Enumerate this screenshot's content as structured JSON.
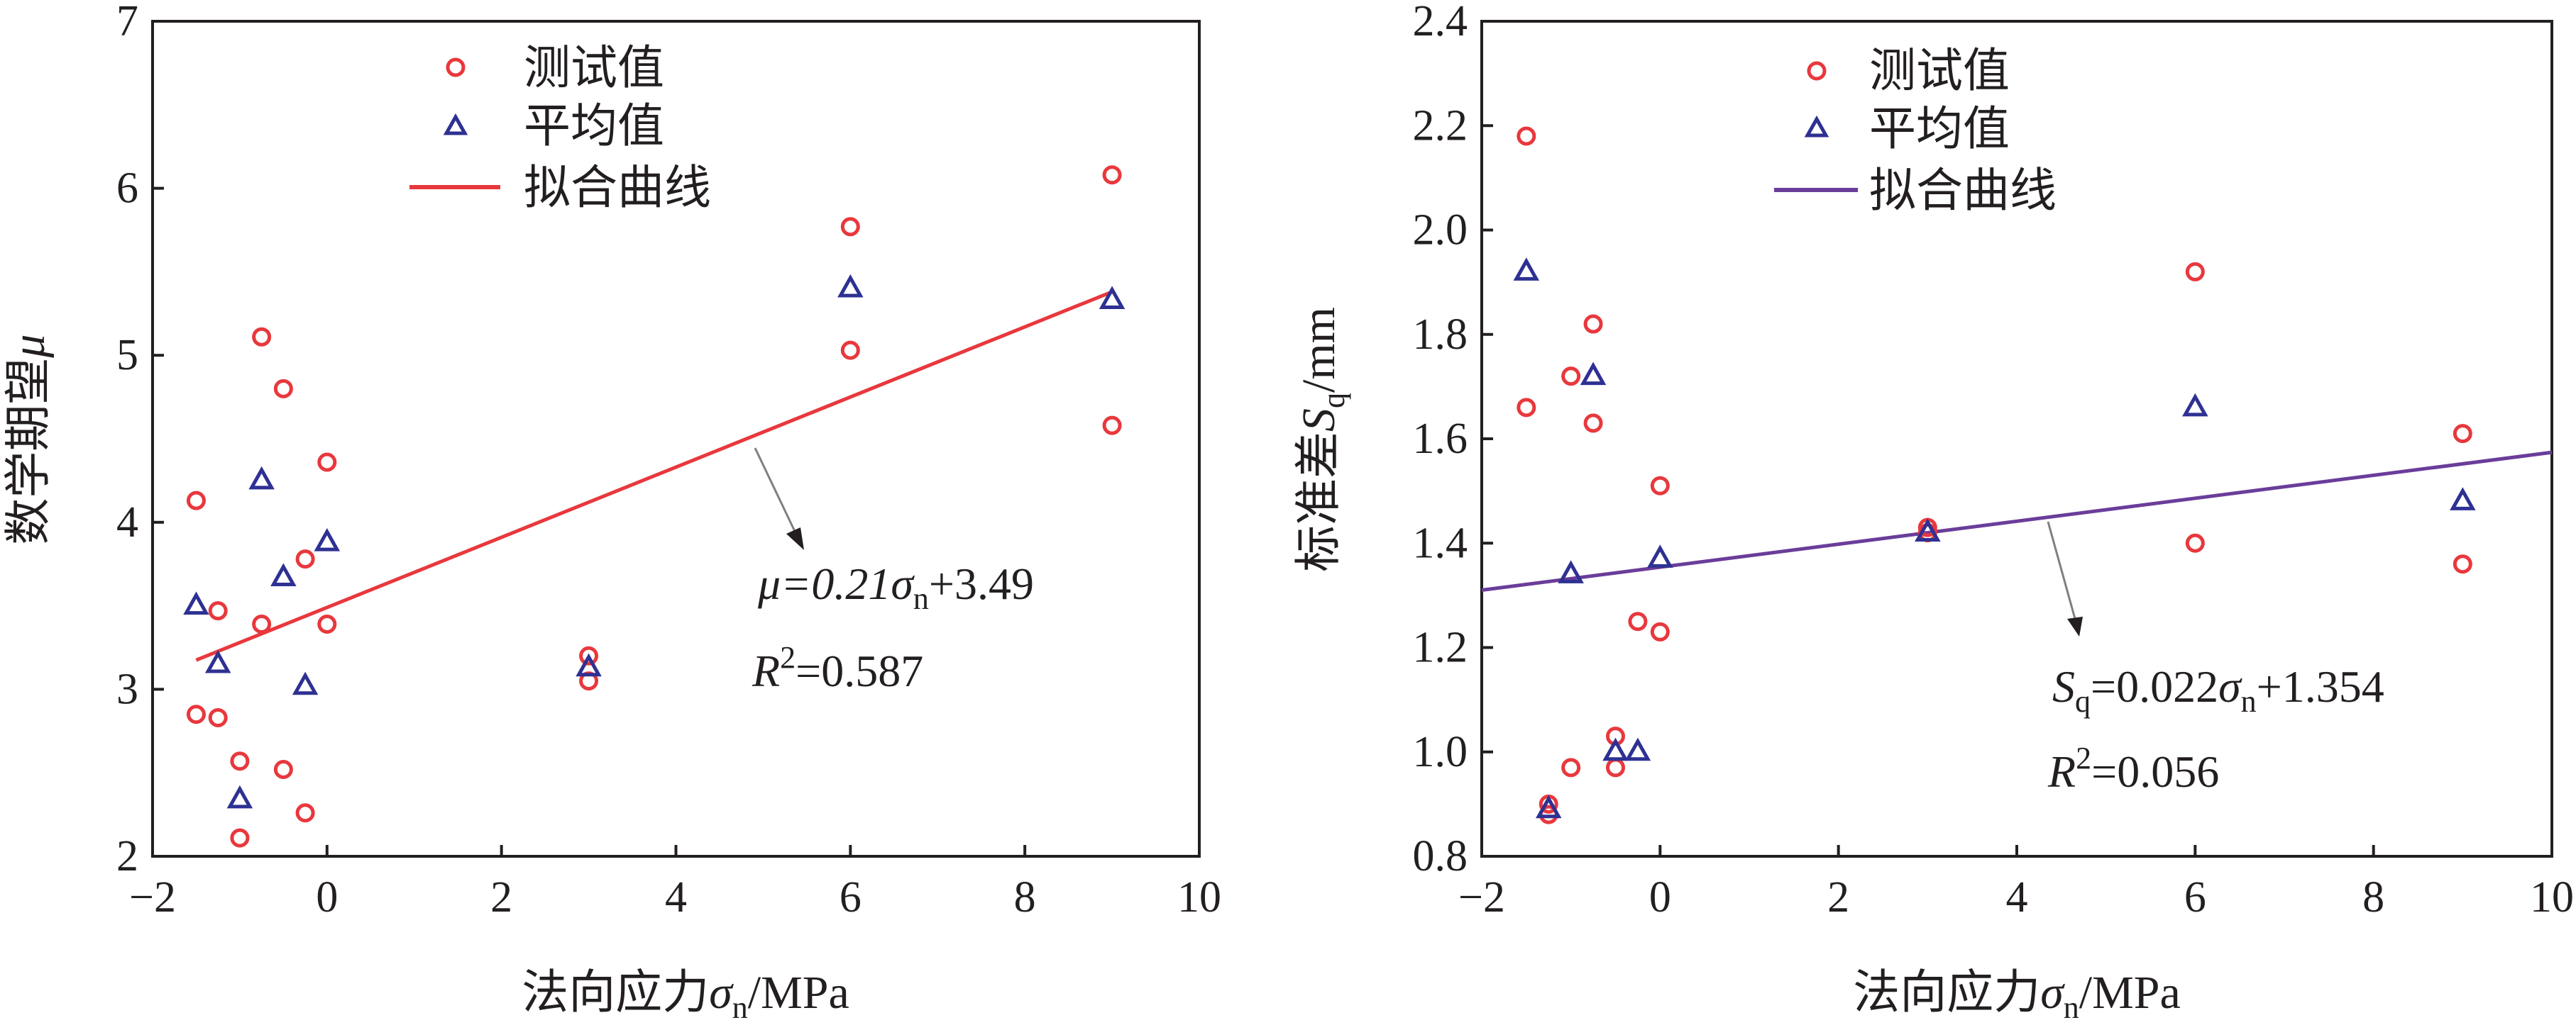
{
  "colors": {
    "test_marker": "#e8383d",
    "mean_marker": "#2e3192",
    "fit_left": "#e8383d",
    "fit_right": "#6a3d9a",
    "axis": "#231f20",
    "arrow": "#808080"
  },
  "chart_data": [
    {
      "type": "scatter",
      "xlabel": "法向应力σn/MPa",
      "ylabel": "数学期望μ",
      "xlim": [
        -2,
        10
      ],
      "ylim": [
        2,
        7
      ],
      "xticks": [
        -2,
        0,
        2,
        4,
        6,
        8,
        10
      ],
      "xtick_labels": [
        "−2",
        "0",
        "2",
        "4",
        "6",
        "8",
        "10"
      ],
      "yticks": [
        2,
        3,
        4,
        5,
        6,
        7
      ],
      "ytick_labels": [
        "2",
        "3",
        "4",
        "5",
        "6",
        "7"
      ],
      "legend_position": "top-left",
      "series": [
        {
          "name": "测试值",
          "marker": "circle",
          "points": [
            [
              -1.5,
              4.13
            ],
            [
              -1.5,
              2.85
            ],
            [
              -1.25,
              3.47
            ],
            [
              -1.25,
              2.83
            ],
            [
              -1.0,
              2.57
            ],
            [
              -1.0,
              2.11
            ],
            [
              -0.75,
              5.11
            ],
            [
              -0.75,
              3.39
            ],
            [
              -0.5,
              4.8
            ],
            [
              -0.5,
              2.52
            ],
            [
              -0.25,
              3.78
            ],
            [
              -0.25,
              2.26
            ],
            [
              0,
              4.36
            ],
            [
              0,
              3.39
            ],
            [
              3,
              3.2
            ],
            [
              3,
              3.05
            ],
            [
              6,
              5.77
            ],
            [
              6,
              5.03
            ],
            [
              9,
              6.08
            ],
            [
              9,
              4.58
            ]
          ]
        },
        {
          "name": "平均值",
          "marker": "triangle",
          "points": [
            [
              -1.5,
              3.5
            ],
            [
              -1.25,
              3.15
            ],
            [
              -1.0,
              2.34
            ],
            [
              -0.75,
              4.25
            ],
            [
              -0.5,
              3.67
            ],
            [
              -0.25,
              3.02
            ],
            [
              0,
              3.88
            ],
            [
              3,
              3.13
            ],
            [
              6,
              5.4
            ],
            [
              9,
              5.33
            ]
          ]
        },
        {
          "name": "拟合曲线",
          "marker": "line",
          "slope": 0.21,
          "intercept": 3.49,
          "x_range": [
            -1.5,
            9
          ]
        }
      ],
      "annotation": {
        "equation": {
          "pre": "μ=0.21",
          "sym": "σ",
          "sub": "n",
          "post": "+3.49"
        },
        "r2": {
          "pre": "R",
          "sup": "2",
          "post": "=0.587"
        }
      }
    },
    {
      "type": "scatter",
      "xlabel": "法向应力σn/MPa",
      "ylabel": "标准差Sq/mm",
      "xlim": [
        -2,
        10
      ],
      "ylim": [
        0.8,
        2.4
      ],
      "xticks": [
        -2,
        0,
        2,
        4,
        6,
        8,
        10
      ],
      "xtick_labels": [
        "−2",
        "0",
        "2",
        "4",
        "6",
        "8",
        "10"
      ],
      "yticks": [
        0.8,
        1.0,
        1.2,
        1.4,
        1.6,
        1.8,
        2.0,
        2.2,
        2.4
      ],
      "ytick_labels": [
        "0.8",
        "1.0",
        "1.2",
        "1.4",
        "1.6",
        "1.8",
        "2.0",
        "2.2",
        "2.4"
      ],
      "legend_position": "top-left",
      "series": [
        {
          "name": "测试值",
          "marker": "circle",
          "points": [
            [
              -1.5,
              2.18
            ],
            [
              -1.5,
              1.66
            ],
            [
              -1.25,
              0.9
            ],
            [
              -1.25,
              0.88
            ],
            [
              -1.0,
              1.72
            ],
            [
              -1.0,
              0.97
            ],
            [
              -0.75,
              1.82
            ],
            [
              -0.75,
              1.63
            ],
            [
              -0.5,
              1.03
            ],
            [
              -0.5,
              0.97
            ],
            [
              -0.25,
              1.25
            ],
            [
              0,
              1.51
            ],
            [
              0,
              1.23
            ],
            [
              3,
              1.43
            ],
            [
              3,
              1.42
            ],
            [
              6,
              1.92
            ],
            [
              6,
              1.4
            ],
            [
              9,
              1.61
            ],
            [
              9,
              1.36
            ]
          ]
        },
        {
          "name": "平均值",
          "marker": "triangle",
          "points": [
            [
              -1.5,
              1.92
            ],
            [
              -1.25,
              0.89
            ],
            [
              -1.0,
              1.34
            ],
            [
              -0.75,
              1.72
            ],
            [
              -0.5,
              1.0
            ],
            [
              -0.25,
              1.0
            ],
            [
              0,
              1.37
            ],
            [
              3,
              1.42
            ],
            [
              6,
              1.66
            ],
            [
              9,
              1.48
            ]
          ]
        },
        {
          "name": "拟合曲线",
          "marker": "line",
          "slope": 0.022,
          "intercept": 1.354,
          "x_range": [
            -2,
            10
          ]
        }
      ],
      "annotation": {
        "equation": {
          "pre_sym": "S",
          "pre_sub": "q",
          "pre": "=0.022",
          "sym": "σ",
          "sub": "n",
          "post": "+1.354"
        },
        "r2": {
          "pre": "R",
          "sup": "2",
          "post": "=0.056"
        }
      }
    }
  ]
}
